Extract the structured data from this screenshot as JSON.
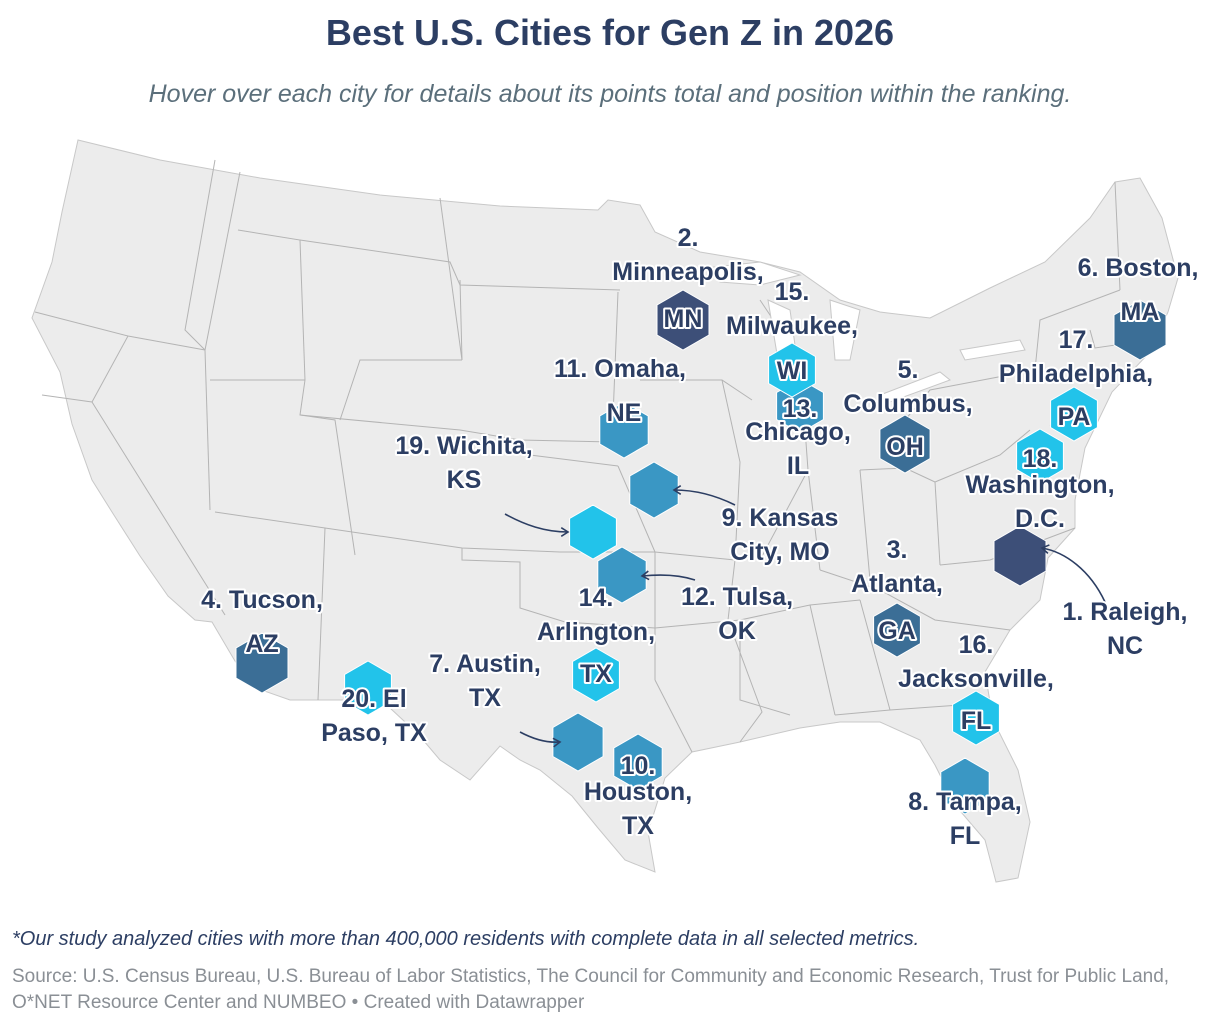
{
  "title": "Best U.S. Cities for Gen Z in 2026",
  "subtitle": "Hover over each city for details about its points total and position within the ranking.",
  "footnote": "*Our study analyzed cities with more than 400,000 residents with complete data in all selected metrics.",
  "source": "Source: U.S. Census Bureau, U.S. Bureau of Labor Statistics, The Council for Community and Economic Research, Trust for Public Land, O*NET Resource Center and NUMBEO • Created with Datawrapper",
  "colors": {
    "dark": "#3d4f78",
    "mid_dark": "#3b6e96",
    "mid": "#3a97c4",
    "light": "#22c3ea",
    "title": "#2c3e63",
    "land": "#ececec",
    "border": "#b4b4b4"
  },
  "cities": [
    {
      "rank": 1,
      "name": "Raleigh, NC",
      "abbr": "",
      "label_lines": [
        "1. Raleigh,",
        "NC"
      ],
      "tier": "dark"
    },
    {
      "rank": 2,
      "name": "Minneapolis, MN",
      "abbr": "MN",
      "label_lines": [
        "2.",
        "Minneapolis,"
      ],
      "tier": "dark"
    },
    {
      "rank": 3,
      "name": "Atlanta, GA",
      "abbr": "GA",
      "label_lines": [
        "3.",
        "Atlanta,"
      ],
      "tier": "mid_dark"
    },
    {
      "rank": 4,
      "name": "Tucson, AZ",
      "abbr": "AZ",
      "label_lines": [
        "4. Tucson,"
      ],
      "tier": "mid_dark"
    },
    {
      "rank": 5,
      "name": "Columbus, OH",
      "abbr": "OH",
      "label_lines": [
        "5.",
        "Columbus,"
      ],
      "tier": "mid_dark"
    },
    {
      "rank": 6,
      "name": "Boston, MA",
      "abbr": "MA",
      "label_lines": [
        "6. Boston,"
      ],
      "tier": "mid_dark"
    },
    {
      "rank": 7,
      "name": "Austin, TX",
      "abbr": "",
      "label_lines": [
        "7. Austin,",
        "TX"
      ],
      "tier": "mid"
    },
    {
      "rank": 8,
      "name": "Tampa, FL",
      "abbr": "",
      "label_lines": [
        "8. Tampa,",
        "FL"
      ],
      "tier": "mid"
    },
    {
      "rank": 9,
      "name": "Kansas City, MO",
      "abbr": "",
      "label_lines": [
        "9. Kansas",
        "City, MO"
      ],
      "tier": "mid"
    },
    {
      "rank": 10,
      "name": "Houston, TX",
      "abbr": "10.",
      "label_lines": [
        "Houston,",
        "TX"
      ],
      "tier": "mid"
    },
    {
      "rank": 11,
      "name": "Omaha, NE",
      "abbr": "NE",
      "label_lines": [
        "11. Omaha,"
      ],
      "tier": "mid"
    },
    {
      "rank": 12,
      "name": "Tulsa, OK",
      "abbr": "",
      "label_lines": [
        "12. Tulsa,",
        "OK"
      ],
      "tier": "mid"
    },
    {
      "rank": 13,
      "name": "Chicago, IL",
      "abbr": "13.",
      "label_lines": [
        "Chicago,",
        "IL"
      ],
      "tier": "mid"
    },
    {
      "rank": 14,
      "name": "Arlington, TX",
      "abbr": "TX",
      "label_lines": [
        "14.",
        "Arlington,"
      ],
      "tier": "light"
    },
    {
      "rank": 15,
      "name": "Milwaukee, WI",
      "abbr": "WI",
      "label_lines": [
        "15.",
        "Milwaukee,"
      ],
      "tier": "light"
    },
    {
      "rank": 16,
      "name": "Jacksonville, FL",
      "abbr": "FL",
      "label_lines": [
        "16.",
        "Jacksonville,"
      ],
      "tier": "light"
    },
    {
      "rank": 17,
      "name": "Philadelphia, PA",
      "abbr": "PA",
      "label_lines": [
        "17.",
        "Philadelphia,"
      ],
      "tier": "light"
    },
    {
      "rank": 18,
      "name": "Washington, D.C.",
      "abbr": "18.",
      "label_lines": [
        "Washington,",
        "D.C."
      ],
      "tier": "light"
    },
    {
      "rank": 19,
      "name": "Wichita, KS",
      "abbr": "",
      "label_lines": [
        "19. Wichita,",
        "KS"
      ],
      "tier": "light"
    },
    {
      "rank": 20,
      "name": "El Paso, TX",
      "abbr": "",
      "label_lines": [
        "20. El",
        "Paso, TX"
      ],
      "tier": "light"
    }
  ]
}
